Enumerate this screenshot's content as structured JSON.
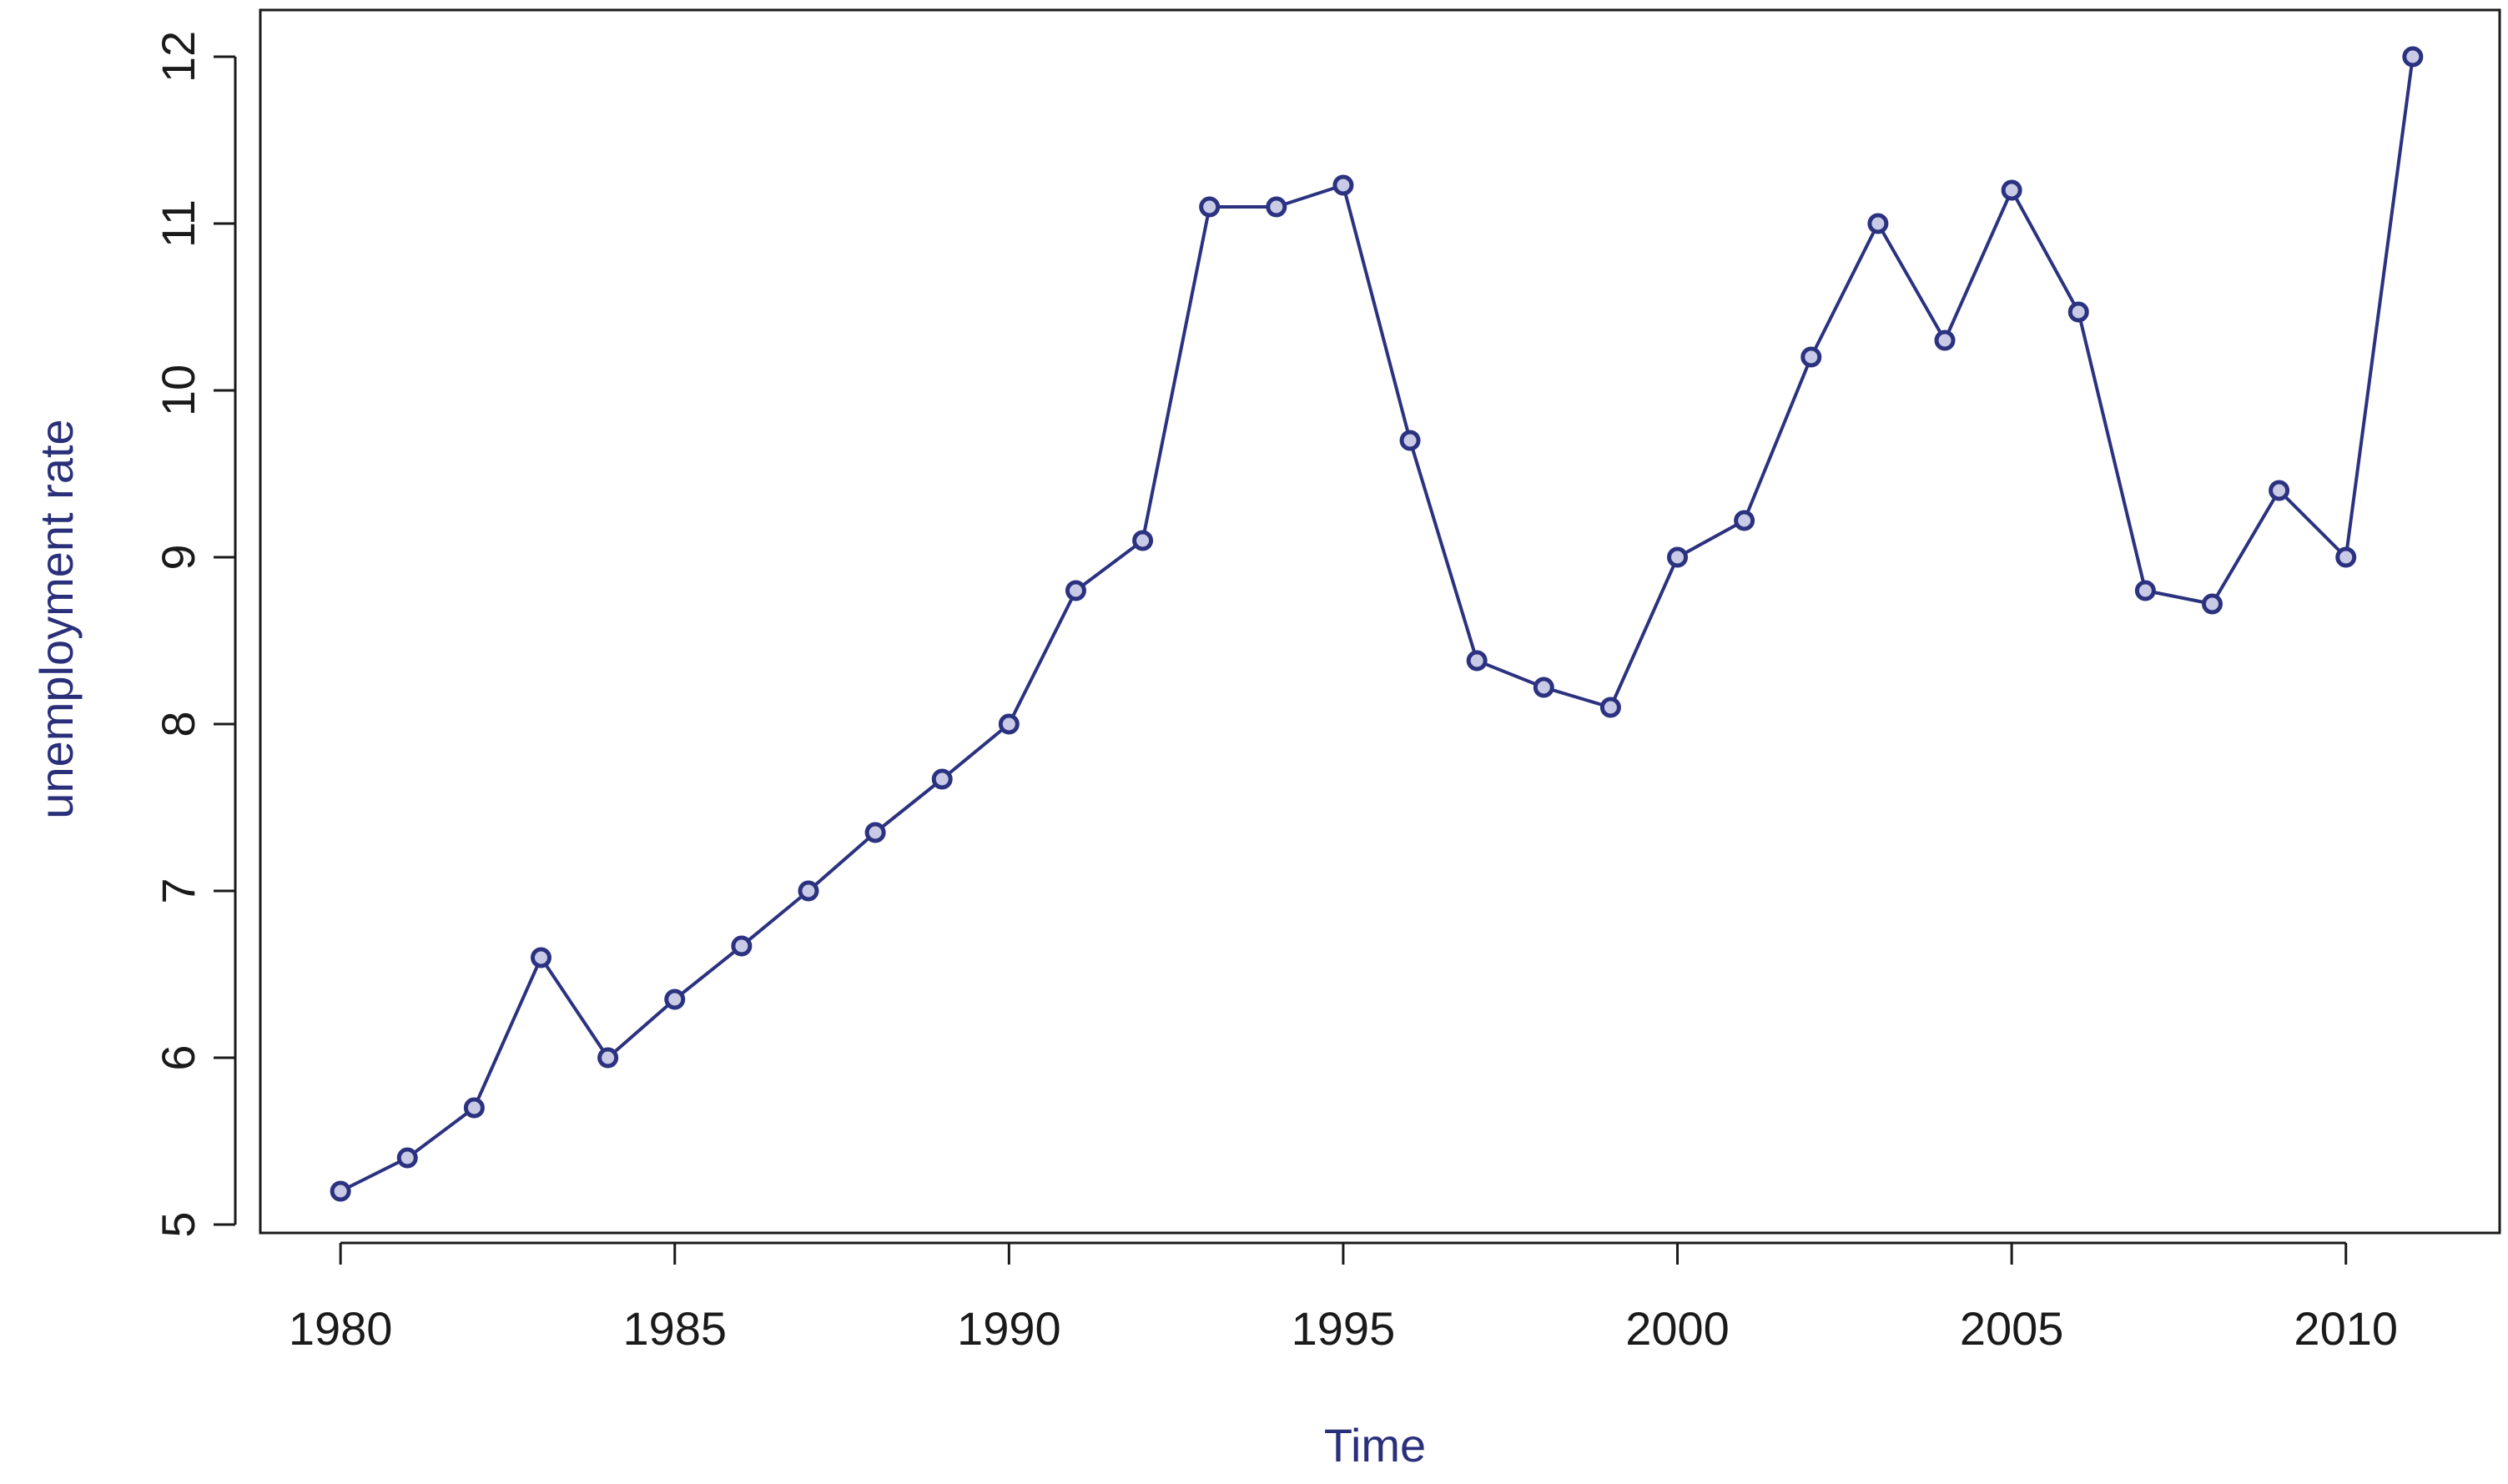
{
  "chart_data": {
    "type": "line",
    "title": "",
    "xlabel": "Time",
    "ylabel": "unemployment rate",
    "xlim": [
      1978.8,
      2012.3
    ],
    "ylim": [
      4.95,
      12.28
    ],
    "x_ticks": [
      1980,
      1985,
      1990,
      1995,
      2000,
      2005,
      2010
    ],
    "y_ticks": [
      5,
      6,
      7,
      8,
      9,
      10,
      11,
      12
    ],
    "x_tick_labels": [
      "1980",
      "1985",
      "1990",
      "1995",
      "2000",
      "2005",
      "2010"
    ],
    "y_tick_labels": [
      "5",
      "6",
      "7",
      "8",
      "9",
      "10",
      "11",
      "12"
    ],
    "grid": false,
    "series": [
      {
        "color": "#2b3280",
        "marker": "circle",
        "x": [
          1980,
          1981,
          1982,
          1983,
          1984,
          1985,
          1986,
          1987,
          1988,
          1989,
          1990,
          1991,
          1992,
          1993,
          1994,
          1995,
          1996,
          1997,
          1998,
          1999,
          2000,
          2001,
          2002,
          2003,
          2004,
          2005,
          2006,
          2007,
          2008,
          2009,
          2010,
          2011
        ],
        "y": [
          5.2,
          5.4,
          5.7,
          6.6,
          6.0,
          6.35,
          6.67,
          7.0,
          7.35,
          7.67,
          8.0,
          8.8,
          9.1,
          11.1,
          11.1,
          11.23,
          9.7,
          8.38,
          8.22,
          8.1,
          9.0,
          9.22,
          10.2,
          11.0,
          10.3,
          11.2,
          10.47,
          8.8,
          8.72,
          9.4,
          9.0,
          12.0
        ]
      }
    ]
  }
}
